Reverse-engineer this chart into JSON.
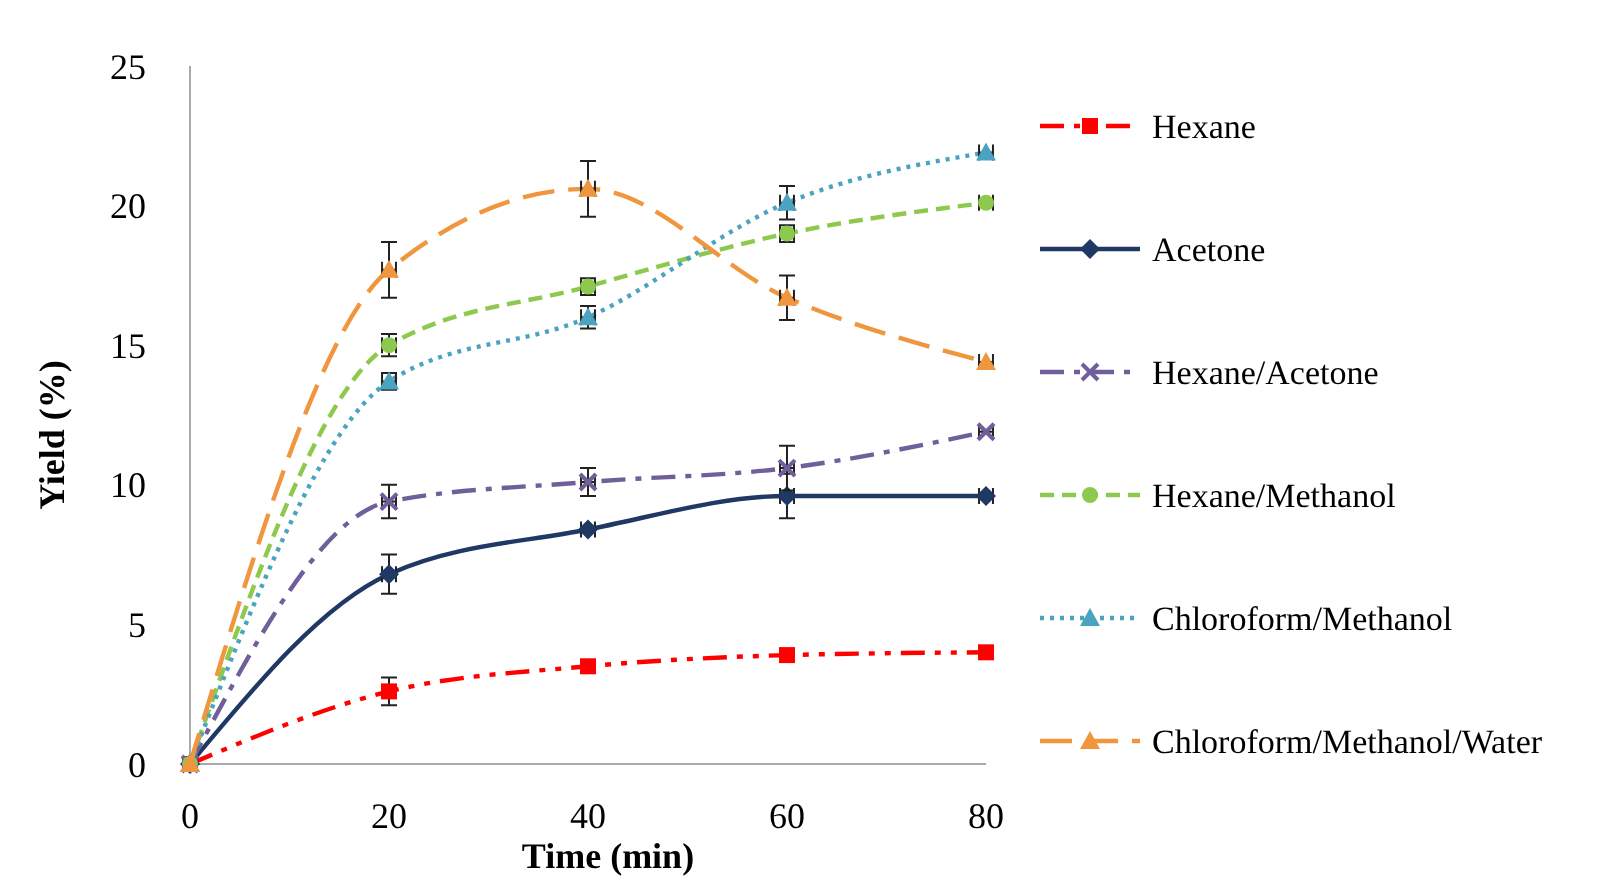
{
  "chart_data": {
    "type": "line",
    "xlabel": "Time  (min)",
    "ylabel": "Yield  (%)",
    "x": [
      0,
      20,
      40,
      60,
      80
    ],
    "xlim": [
      0,
      80
    ],
    "xticks": [
      0,
      20,
      40,
      60,
      80
    ],
    "ylim": [
      0,
      25
    ],
    "yticks": [
      0,
      5,
      10,
      15,
      20,
      25
    ],
    "grid": false,
    "legend": "right",
    "series": [
      {
        "name": "Hexane",
        "color": "#ff0000",
        "marker": "square",
        "line_style": "dashdotdot",
        "values": [
          0,
          2.6,
          3.5,
          3.9,
          4.0
        ],
        "errors": [
          null,
          0.5,
          null,
          null,
          null
        ]
      },
      {
        "name": "Acetone",
        "color": "#1f3864",
        "marker": "diamond",
        "line_style": "solid",
        "values": [
          0,
          6.8,
          8.4,
          9.6,
          9.6
        ],
        "errors": [
          null,
          0.7,
          null,
          0.8,
          null
        ],
        "xerrors": [
          null,
          0.7,
          0.7,
          0.7,
          0.7
        ]
      },
      {
        "name": "Hexane/Acetone",
        "color": "#6f5f9a",
        "marker": "cross",
        "line_style": "dashdot",
        "values": [
          0,
          9.4,
          10.1,
          10.6,
          11.9
        ],
        "errors": [
          null,
          0.6,
          0.5,
          0.8,
          null
        ],
        "xerrors": [
          null,
          0.7,
          0.7,
          0.7,
          0.7
        ]
      },
      {
        "name": "Hexane/Methanol",
        "color": "#8dc94c",
        "marker": "circle",
        "line_style": "dashed",
        "values": [
          0,
          15.0,
          17.1,
          19.0,
          20.1
        ],
        "errors": [
          null,
          0.4,
          0.3,
          0.3,
          null
        ],
        "xerrors": [
          null,
          0.7,
          0.7,
          0.7,
          0.7
        ]
      },
      {
        "name": "Chloroform/Methanol",
        "color": "#4aa3bf",
        "marker": "triangle",
        "line_style": "dotted",
        "values": [
          0,
          13.7,
          16.0,
          20.1,
          21.9
        ],
        "errors": [
          null,
          0.3,
          0.4,
          0.6,
          null
        ],
        "xerrors": [
          null,
          0.7,
          0.7,
          0.7,
          0.7
        ]
      },
      {
        "name": "Chloroform/Methanol/Water",
        "color": "#f0963e",
        "marker": "triangle",
        "line_style": "longdash",
        "values": [
          0,
          17.7,
          20.6,
          16.7,
          14.4
        ],
        "errors": [
          null,
          1.0,
          1.0,
          0.8,
          null
        ],
        "xerrors": [
          null,
          0.7,
          0.7,
          0.7,
          0.7
        ]
      }
    ]
  }
}
